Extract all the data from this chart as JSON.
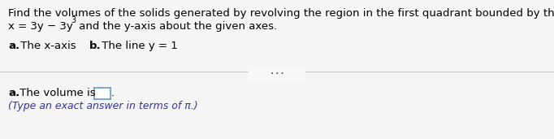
{
  "line1": "Find the volumes of the solids generated by revolving the region in the first quadrant bounded by the curve",
  "line2_base": "x = 3y − 3y",
  "line2_super": "3",
  "line2_tail": " and the y-axis about the given axes.",
  "part_a_label": "a.",
  "part_a_text": " The x-axis",
  "part_b_label": "b.",
  "part_b_text": " The line y = 1",
  "answer_a_label": "a.",
  "answer_pre": " The volume is ",
  "answer_period": ".",
  "answer_line2": "(Type an exact answer in terms of π.)",
  "text_color": "#000000",
  "blue_color": "#3333aa",
  "bg_color": "#f5f5f5",
  "divider_color": "#cccccc",
  "box_color": "#6699cc",
  "font_size_main": 9.5,
  "font_size_small": 9.0,
  "font_size_super": 7.0
}
